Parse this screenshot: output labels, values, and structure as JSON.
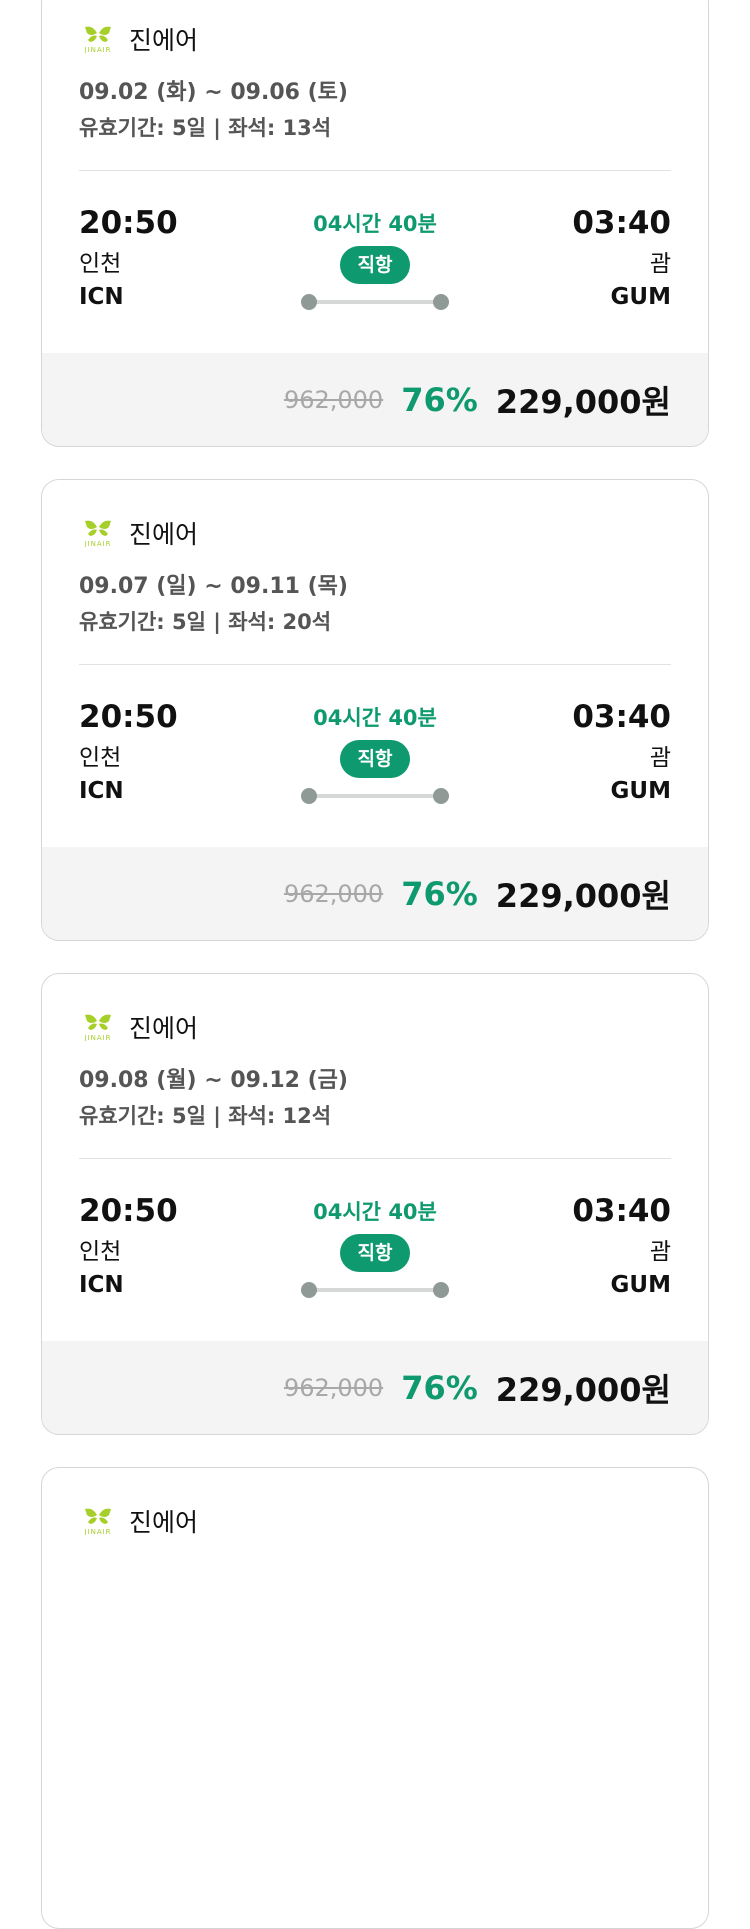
{
  "colors": {
    "accent": "#0e9a6e",
    "logo": "#a7cf2a"
  },
  "flights": [
    {
      "airline": "진에어",
      "logo_text": "JINAIR",
      "dates": "09.02 (화) ~ 09.06 (토)",
      "validity": "유효기간: 5일 | 좌석: 13석",
      "dep_time": "20:50",
      "dep_city": "인천",
      "dep_code": "ICN",
      "duration": "04시간 40분",
      "type": "직항",
      "arr_time": "03:40",
      "arr_city": "괌",
      "arr_code": "GUM",
      "original_price": "962,000",
      "discount": "76%",
      "price": "229,000원"
    },
    {
      "airline": "진에어",
      "logo_text": "JINAIR",
      "dates": "09.07 (일) ~ 09.11 (목)",
      "validity": "유효기간: 5일 | 좌석: 20석",
      "dep_time": "20:50",
      "dep_city": "인천",
      "dep_code": "ICN",
      "duration": "04시간 40분",
      "type": "직항",
      "arr_time": "03:40",
      "arr_city": "괌",
      "arr_code": "GUM",
      "original_price": "962,000",
      "discount": "76%",
      "price": "229,000원"
    },
    {
      "airline": "진에어",
      "logo_text": "JINAIR",
      "dates": "09.08 (월) ~ 09.12 (금)",
      "validity": "유효기간: 5일 | 좌석: 12석",
      "dep_time": "20:50",
      "dep_city": "인천",
      "dep_code": "ICN",
      "duration": "04시간 40분",
      "type": "직항",
      "arr_time": "03:40",
      "arr_city": "괌",
      "arr_code": "GUM",
      "original_price": "962,000",
      "discount": "76%",
      "price": "229,000원"
    },
    {
      "airline": "진에어",
      "logo_text": "JINAIR"
    }
  ]
}
